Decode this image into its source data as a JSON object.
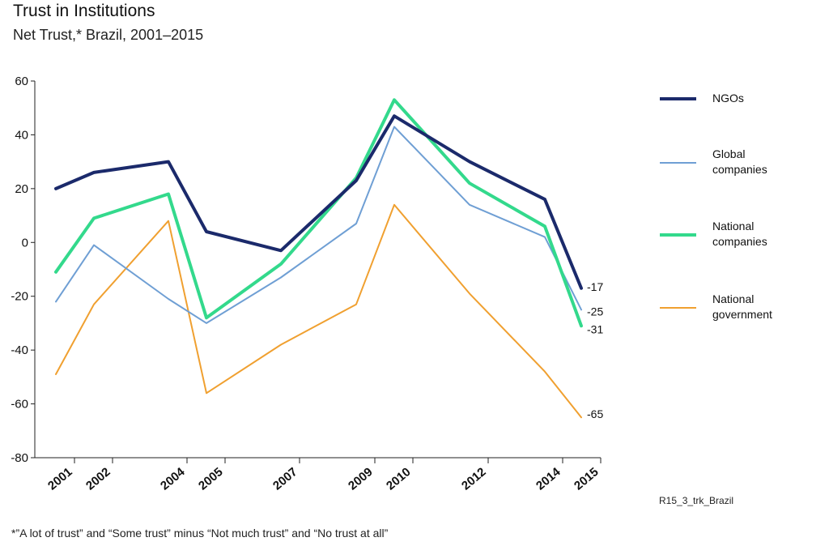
{
  "title": "Trust in Institutions",
  "subtitle": "Net Trust,* Brazil, 2001–2015",
  "source": "R15_3_trk_Brazil",
  "footnote": "*”A lot of trust” and “Some trust” minus “Not much trust” and “No trust at all”",
  "chart_data": {
    "type": "line",
    "title": "Trust in Institutions",
    "subtitle": "Net Trust,* Brazil, 2001–2015",
    "x": [
      2001,
      2002,
      2004,
      2005,
      2007,
      2009,
      2010,
      2012,
      2014,
      2015
    ],
    "x_tick_labels": [
      "2001",
      "2002",
      "2004",
      "2005",
      "2007",
      "2009",
      "2010",
      "2012",
      "2014",
      "2015"
    ],
    "ylim": [
      -80,
      60
    ],
    "y_ticks": [
      60,
      40,
      20,
      0,
      -20,
      -40,
      -60,
      -80
    ],
    "grid": false,
    "legend_position": "right",
    "series": [
      {
        "name": "NGOs",
        "legend_lines": [
          "NGOs"
        ],
        "color": "#1b2a6b",
        "width": "thick",
        "values": [
          20,
          26,
          30,
          4,
          -3,
          23,
          47,
          30,
          16,
          -17
        ],
        "end_label": "-17"
      },
      {
        "name": "Global companies",
        "legend_lines": [
          "Global",
          "companies"
        ],
        "color": "#6f9fd4",
        "width": "thin",
        "values": [
          -22,
          -1,
          -21,
          -30,
          -13,
          7,
          43,
          14,
          2,
          -25
        ],
        "end_label": "-25"
      },
      {
        "name": "National companies",
        "legend_lines": [
          "National",
          "companies"
        ],
        "color": "#33d98c",
        "width": "thick",
        "values": [
          -11,
          9,
          18,
          -28,
          -8,
          24,
          53,
          22,
          6,
          -31
        ],
        "end_label": "-31"
      },
      {
        "name": "National government",
        "legend_lines": [
          "National",
          "government"
        ],
        "color": "#f0a030",
        "width": "thin",
        "values": [
          -49,
          -23,
          8,
          -56,
          -38,
          -23,
          14,
          -19,
          -48,
          -65
        ],
        "end_label": "-65"
      }
    ]
  }
}
